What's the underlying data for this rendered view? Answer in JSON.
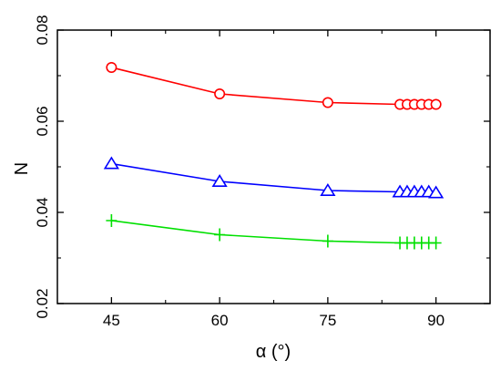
{
  "chart_data": {
    "type": "line",
    "title": "",
    "xlabel": "α (°)",
    "ylabel": "N",
    "xlim": [
      37.5,
      97.5
    ],
    "ylim": [
      0.02,
      0.08
    ],
    "xticks": [
      45,
      60,
      75,
      90
    ],
    "xtick_labels": [
      "45",
      "60",
      "75",
      "90"
    ],
    "yticks": [
      0.02,
      0.04,
      0.06,
      0.08
    ],
    "ytick_labels": [
      "0.02",
      "0.04",
      "0.06",
      "0.08"
    ],
    "grid": false,
    "x": [
      45,
      60,
      75,
      85,
      86,
      87,
      88,
      89,
      90
    ],
    "series": [
      {
        "marker": "circle",
        "color": "#ff0000",
        "values": [
          0.0718,
          0.066,
          0.0641,
          0.0637,
          0.0637,
          0.0637,
          0.0637,
          0.0637,
          0.0637
        ]
      },
      {
        "marker": "triangle",
        "color": "#0000ff",
        "values": [
          0.0507,
          0.0468,
          0.0448,
          0.0445,
          0.0445,
          0.0445,
          0.0445,
          0.0445,
          0.0443
        ]
      },
      {
        "marker": "plus",
        "color": "#00e000",
        "values": [
          0.0382,
          0.0351,
          0.0337,
          0.0333,
          0.0333,
          0.0333,
          0.0333,
          0.0333,
          0.0333
        ]
      }
    ]
  }
}
